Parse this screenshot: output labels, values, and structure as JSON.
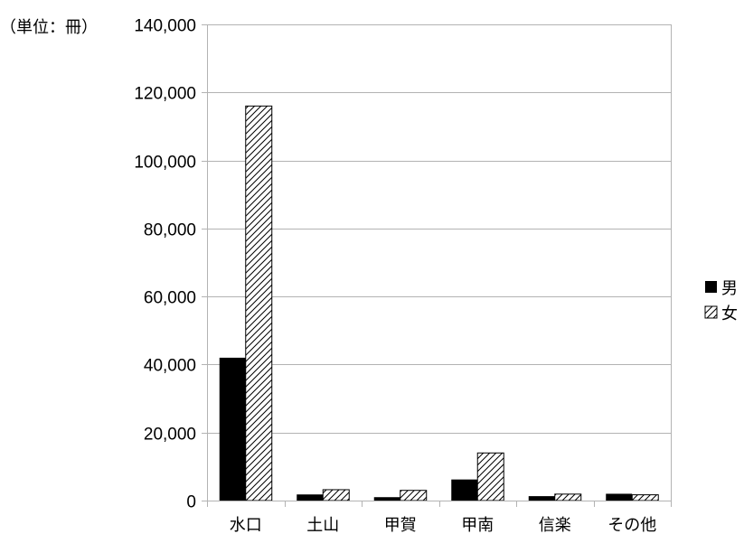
{
  "chart_data": {
    "type": "bar",
    "unit_label": "（単位：冊）",
    "categories": [
      "水口",
      "土山",
      "甲賀",
      "甲南",
      "信楽",
      "その他"
    ],
    "series": [
      {
        "name": "男",
        "fill": "solid",
        "color": "#000000",
        "values": [
          42000,
          1800,
          1000,
          6200,
          1300,
          2000
        ]
      },
      {
        "name": "女",
        "fill": "hatched",
        "color": "#000000",
        "values": [
          116000,
          3200,
          3000,
          14000,
          1900,
          1700
        ]
      }
    ],
    "ylim": [
      0,
      140000
    ],
    "yticks": [
      0,
      20000,
      40000,
      60000,
      80000,
      100000,
      120000,
      140000
    ],
    "ytick_labels": [
      "0",
      "20,000",
      "40,000",
      "60,000",
      "80,000",
      "100,000",
      "120,000",
      "140,000"
    ],
    "grid": true,
    "legend_position": "right"
  }
}
